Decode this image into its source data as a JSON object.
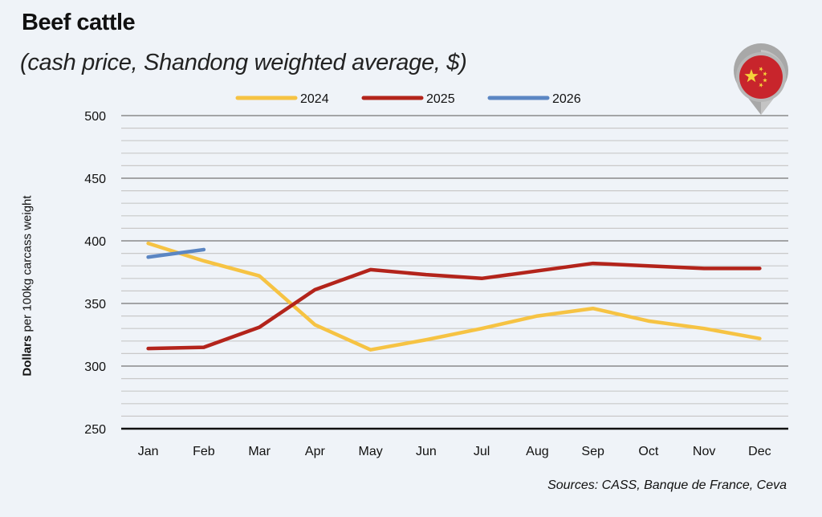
{
  "header": {
    "title": "Beef cattle",
    "subtitle": "(cash price, Shandong weighted average, $)"
  },
  "footer": {
    "source": "Sources: CASS, Banque de France, Ceva"
  },
  "badge": {
    "icon": "china-flag-map-pin-icon",
    "flag_red": "#c8252c",
    "flag_yellow": "#f5d23b"
  },
  "chart_data": {
    "type": "line",
    "title": "Beef cattle",
    "subtitle": "(cash price, Shandong weighted average, $)",
    "xlabel": "",
    "ylabel_bold": "Dollars",
    "ylabel_rest": " per 100kg carcass weight",
    "ylabel": "Dollars per 100kg carcass weight",
    "categories": [
      "Jan",
      "Feb",
      "Mar",
      "Apr",
      "May",
      "Jun",
      "Jul",
      "Aug",
      "Sep",
      "Oct",
      "Nov",
      "Dec"
    ],
    "ylim": [
      250,
      500
    ],
    "yticks": [
      250,
      300,
      350,
      400,
      450,
      500
    ],
    "minor_grid_step": 10,
    "grid": true,
    "legend_position": "top-center",
    "series": [
      {
        "name": "2024",
        "color": "#f6c343",
        "values": [
          398,
          384,
          372,
          333,
          313,
          321,
          330,
          340,
          346,
          336,
          330,
          322
        ]
      },
      {
        "name": "2025",
        "color": "#b3241b",
        "values": [
          314,
          315,
          331,
          361,
          377,
          373,
          370,
          376,
          382,
          380,
          378,
          378
        ]
      },
      {
        "name": "2026",
        "color": "#5b86c3",
        "values": [
          387,
          393,
          null,
          null,
          null,
          null,
          null,
          null,
          null,
          null,
          null,
          null
        ]
      }
    ]
  }
}
